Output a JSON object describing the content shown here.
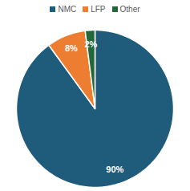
{
  "chart_data": {
    "type": "pie",
    "categories": [
      "NMC",
      "LFP",
      "Other"
    ],
    "values": [
      90,
      8,
      2
    ],
    "value_labels": [
      "90%",
      "8%",
      "2%"
    ],
    "colors": [
      "#1f5b7a",
      "#ed7d31",
      "#22683a"
    ],
    "legend": "top",
    "data_labels": true
  }
}
